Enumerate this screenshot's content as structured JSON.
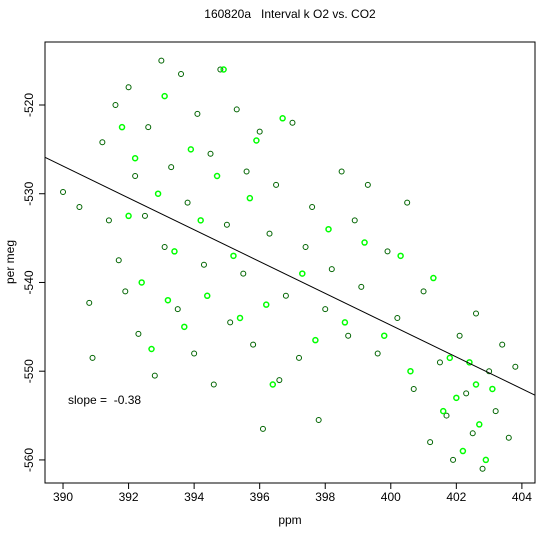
{
  "chart_data": {
    "type": "scatter",
    "title": "160820a   Interval k O2 vs. CO2",
    "xlabel": "ppm",
    "ylabel": "per meg",
    "annotation": "slope =  -0.38",
    "xlim": [
      389.45,
      404.4
    ],
    "ylim": [
      -562.6,
      -512.9
    ],
    "xticks": [
      390,
      392,
      394,
      396,
      398,
      400,
      402,
      404
    ],
    "yticks": [
      -560,
      -550,
      -540,
      -530,
      -520
    ],
    "series": [
      {
        "name": null,
        "color": "#006400",
        "x": [
          390.0,
          390.5,
          390.8,
          390.9,
          391.2,
          391.4,
          391.6,
          391.7,
          391.9,
          392.0,
          392.2,
          392.3,
          392.5,
          392.6,
          392.8,
          393.0,
          393.1,
          393.3,
          393.5,
          393.6,
          393.8,
          394.0,
          394.1,
          394.3,
          394.5,
          394.6,
          394.8,
          395.0,
          395.1,
          395.3,
          395.5,
          395.6,
          395.8,
          396.0,
          396.1,
          396.3,
          396.5,
          396.6,
          396.8,
          397.0,
          397.2,
          397.4,
          397.6,
          397.8,
          398.0,
          398.2,
          398.5,
          398.7,
          398.9,
          399.1,
          399.3,
          399.6,
          399.9,
          400.2,
          400.5,
          400.7,
          401.0,
          401.2,
          401.5,
          401.7,
          401.9,
          402.1,
          402.3,
          402.5,
          402.6,
          402.8,
          403.0,
          403.2,
          403.4,
          403.6,
          403.8
        ],
        "values": [
          -529.8,
          -531.5,
          -542.3,
          -548.5,
          -524.2,
          -533,
          -520,
          -537.5,
          -541,
          -518,
          -528,
          -545.8,
          -532.5,
          -522.5,
          -550.5,
          -515,
          -536,
          -527,
          -543,
          -516.5,
          -531,
          -548,
          -521,
          -538,
          -525.5,
          -551.5,
          -516,
          -533.5,
          -544.5,
          -520.5,
          -539,
          -527.5,
          -547,
          -523,
          -556.5,
          -534.5,
          -529,
          -551,
          -541.5,
          -522,
          -548.5,
          -536,
          -531.5,
          -555.5,
          -543,
          -538.5,
          -527.5,
          -546,
          -533,
          -540.5,
          -529,
          -548,
          -536.5,
          -544,
          -531,
          -552,
          -541,
          -558,
          -549,
          -555,
          -560,
          -546,
          -552.5,
          -557,
          -543.5,
          -561,
          -550,
          -554.5,
          -547,
          -557.5,
          -549.5
        ]
      },
      {
        "name": null,
        "color": "#00ff00",
        "x": [
          391.8,
          392.0,
          392.2,
          392.4,
          392.7,
          392.9,
          393.1,
          393.2,
          393.4,
          393.7,
          393.9,
          394.2,
          394.4,
          394.7,
          394.9,
          395.2,
          395.4,
          395.7,
          395.9,
          396.2,
          396.4,
          396.7,
          397.3,
          397.7,
          398.1,
          398.6,
          399.2,
          399.8,
          400.3,
          400.6,
          401.3,
          401.6,
          401.8,
          402.0,
          402.2,
          402.4,
          402.6,
          402.7,
          402.9,
          403.1
        ],
        "values": [
          -522.5,
          -532.5,
          -526,
          -540,
          -547.5,
          -530,
          -519,
          -542,
          -536.5,
          -545,
          -525,
          -533,
          -541.5,
          -528,
          -516,
          -537,
          -544,
          -530.5,
          -524,
          -542.5,
          -551.5,
          -521.5,
          -539,
          -546.5,
          -534,
          -544.5,
          -535.5,
          -546,
          -537,
          -550,
          -539.5,
          -554.5,
          -548.5,
          -553,
          -559,
          -549,
          -551.5,
          -556,
          -560,
          -552
        ]
      }
    ],
    "fit_line": {
      "x": [
        389.45,
        404.4
      ],
      "y": [
        -525.9,
        -552.7
      ]
    }
  }
}
